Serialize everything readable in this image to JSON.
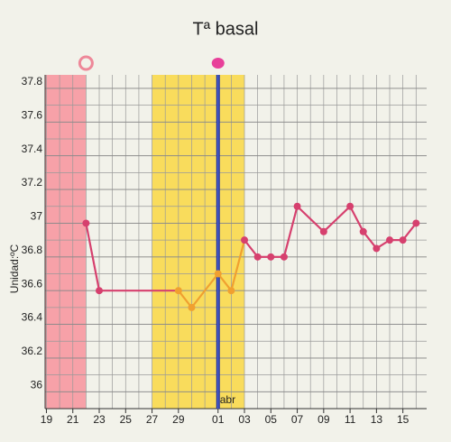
{
  "chart_data": {
    "type": "line",
    "title": "Tª basal",
    "y_label": "Unidad:ºC",
    "x": [
      3,
      4,
      10,
      11,
      13,
      14,
      15,
      16,
      17,
      18,
      19,
      21,
      23,
      24,
      25,
      26,
      27,
      28
    ],
    "values": [
      37.0,
      36.6,
      36.6,
      36.5,
      36.7,
      36.6,
      36.9,
      36.8,
      36.8,
      36.8,
      37.1,
      36.95,
      37.1,
      36.95,
      36.85,
      36.9,
      36.9,
      37.0
    ],
    "color": "#d6406e",
    "highlight_color": "#f0a030",
    "xlim": [
      -0.1,
      28.8
    ],
    "xticks": [
      {
        "value": 0,
        "label": "19"
      },
      {
        "value": 2,
        "label": "21"
      },
      {
        "value": 4,
        "label": "23"
      },
      {
        "value": 6,
        "label": "25"
      },
      {
        "value": 8,
        "label": "27"
      },
      {
        "value": 10,
        "label": "29"
      },
      {
        "value": 13,
        "label": "01"
      },
      {
        "value": 15,
        "label": "03"
      },
      {
        "value": 17,
        "label": "05"
      },
      {
        "value": 19,
        "label": "07"
      },
      {
        "value": 21,
        "label": "09"
      },
      {
        "value": 23,
        "label": "11"
      },
      {
        "value": 25,
        "label": "13"
      },
      {
        "value": 27,
        "label": "15"
      }
    ],
    "ylim": [
      35.9,
      37.88
    ],
    "yticks": [
      {
        "value": 36,
        "label": "36"
      },
      {
        "value": 36.2,
        "label": "36.2"
      },
      {
        "value": 36.4,
        "label": "36.4"
      },
      {
        "value": 36.6,
        "label": "36.6"
      },
      {
        "value": 36.8,
        "label": "36.8"
      },
      {
        "value": 37,
        "label": "37"
      },
      {
        "value": 37.2,
        "label": "37.2"
      },
      {
        "value": 37.4,
        "label": "37.4"
      },
      {
        "value": 37.6,
        "label": "37.6"
      },
      {
        "value": 37.8,
        "label": "37.8"
      }
    ],
    "grid": true,
    "bands": [
      {
        "from": -0.1,
        "to": 3,
        "color": "#f7a1a8"
      },
      {
        "from": 8,
        "to": 15,
        "color": "#f9dc5c"
      }
    ],
    "today": {
      "x": 13,
      "color": "#1c2fa0",
      "label": "abr"
    },
    "markers": [
      {
        "x": 3,
        "style": "ring",
        "color": "#ee8899"
      },
      {
        "x": 13,
        "style": "dot",
        "color": "#e8409a"
      }
    ]
  }
}
